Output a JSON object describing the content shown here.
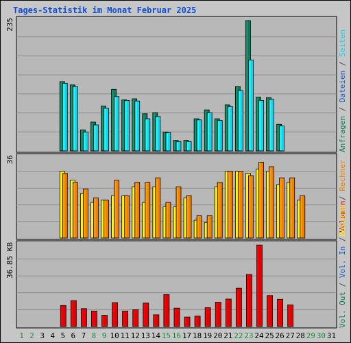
{
  "title": "Tages-Statistik im Monat Februar 2025",
  "colors": {
    "background": "#c6c6c6",
    "plot_bg": "#b8b8b8",
    "grid": "#8c8c8c",
    "title": "#0d4dd6",
    "weekday": "#000000",
    "weekend": "#1f8a3c",
    "anfragen": "#0f7a5a",
    "dateien": "#1d5ac8",
    "seiten": "#16d2ea",
    "besuche": "#ffea00",
    "rechner": "#f08000",
    "vol_out": "#0f7a5a",
    "vol_in": "#1d5ac8",
    "volumen": "#e00000",
    "sep": "#444444"
  },
  "legend": {
    "panel1": [
      "Anfragen",
      "Dateien",
      "Seiten"
    ],
    "panel2": [
      "Besuche",
      "Rechner"
    ],
    "panel3": [
      "Vol. Out",
      "Vol. In",
      "Volumen"
    ],
    "sep": " / "
  },
  "chart_data": {
    "type": "bar",
    "days": [
      1,
      2,
      3,
      4,
      5,
      6,
      7,
      8,
      9,
      10,
      11,
      12,
      13,
      14,
      15,
      16,
      17,
      18,
      19,
      20,
      21,
      22,
      23,
      24,
      25,
      26,
      27,
      28,
      29,
      30,
      31
    ],
    "weekend_days": [
      1,
      2,
      8,
      9,
      15,
      16,
      22,
      23,
      29,
      30
    ],
    "panels": [
      {
        "id": "hits",
        "ymax": 235,
        "ymax_label": "235",
        "series": [
          {
            "name": "Anfragen",
            "values": [
              0,
              0,
              0,
              0,
              125,
              119,
              38,
              52,
              81,
              111,
              92,
              94,
              67,
              69,
              34,
              19,
              19,
              58,
              74,
              58,
              83,
              116,
              235,
              97,
              96,
              48,
              0,
              0,
              0,
              0,
              0
            ]
          },
          {
            "name": "Dateien",
            "values": [
              0,
              0,
              0,
              0,
              122,
              116,
              34,
              47,
              77,
              98,
              91,
              90,
              58,
              62,
              33,
              17,
              17,
              56,
              69,
              55,
              80,
              109,
              164,
              91,
              93,
              45,
              0,
              0,
              0,
              0,
              0
            ]
          }
        ]
      },
      {
        "id": "visits",
        "ymax": 36,
        "ymax_label": "36",
        "series": [
          {
            "name": "Besuche",
            "values": [
              0,
              0,
              0,
              0,
              30,
              26,
              20,
              16,
              17,
              19,
              19,
              23,
              16,
              23,
              14,
              14,
              18,
              8,
              7,
              23,
              30,
              30,
              29,
              31,
              30,
              24,
              25,
              17,
              0,
              0,
              0
            ]
          },
          {
            "name": "Rechner",
            "values": [
              0,
              0,
              0,
              0,
              29,
              25,
              22,
              18,
              17,
              26,
              19,
              25,
              25,
              27,
              16,
              23,
              19,
              10,
              10,
              25,
              30,
              30,
              28,
              34,
              32,
              27,
              27,
              19,
              0,
              0,
              0
            ]
          }
        ]
      },
      {
        "id": "volume",
        "ymax": 36.85,
        "ymax_label": "36.85 KB",
        "series": [
          {
            "name": "Volumen",
            "values": [
              0,
              0,
              0,
              0,
              9.5,
              11.7,
              8.1,
              7.0,
              5.1,
              10.8,
              7.0,
              7.6,
              10.6,
              5.3,
              14.4,
              8.3,
              4.3,
              4.7,
              8.5,
              11.0,
              12.4,
              17.3,
              23.5,
              36.8,
              14.0,
              12.3,
              9.8,
              0,
              0,
              0,
              0
            ]
          }
        ]
      }
    ]
  }
}
